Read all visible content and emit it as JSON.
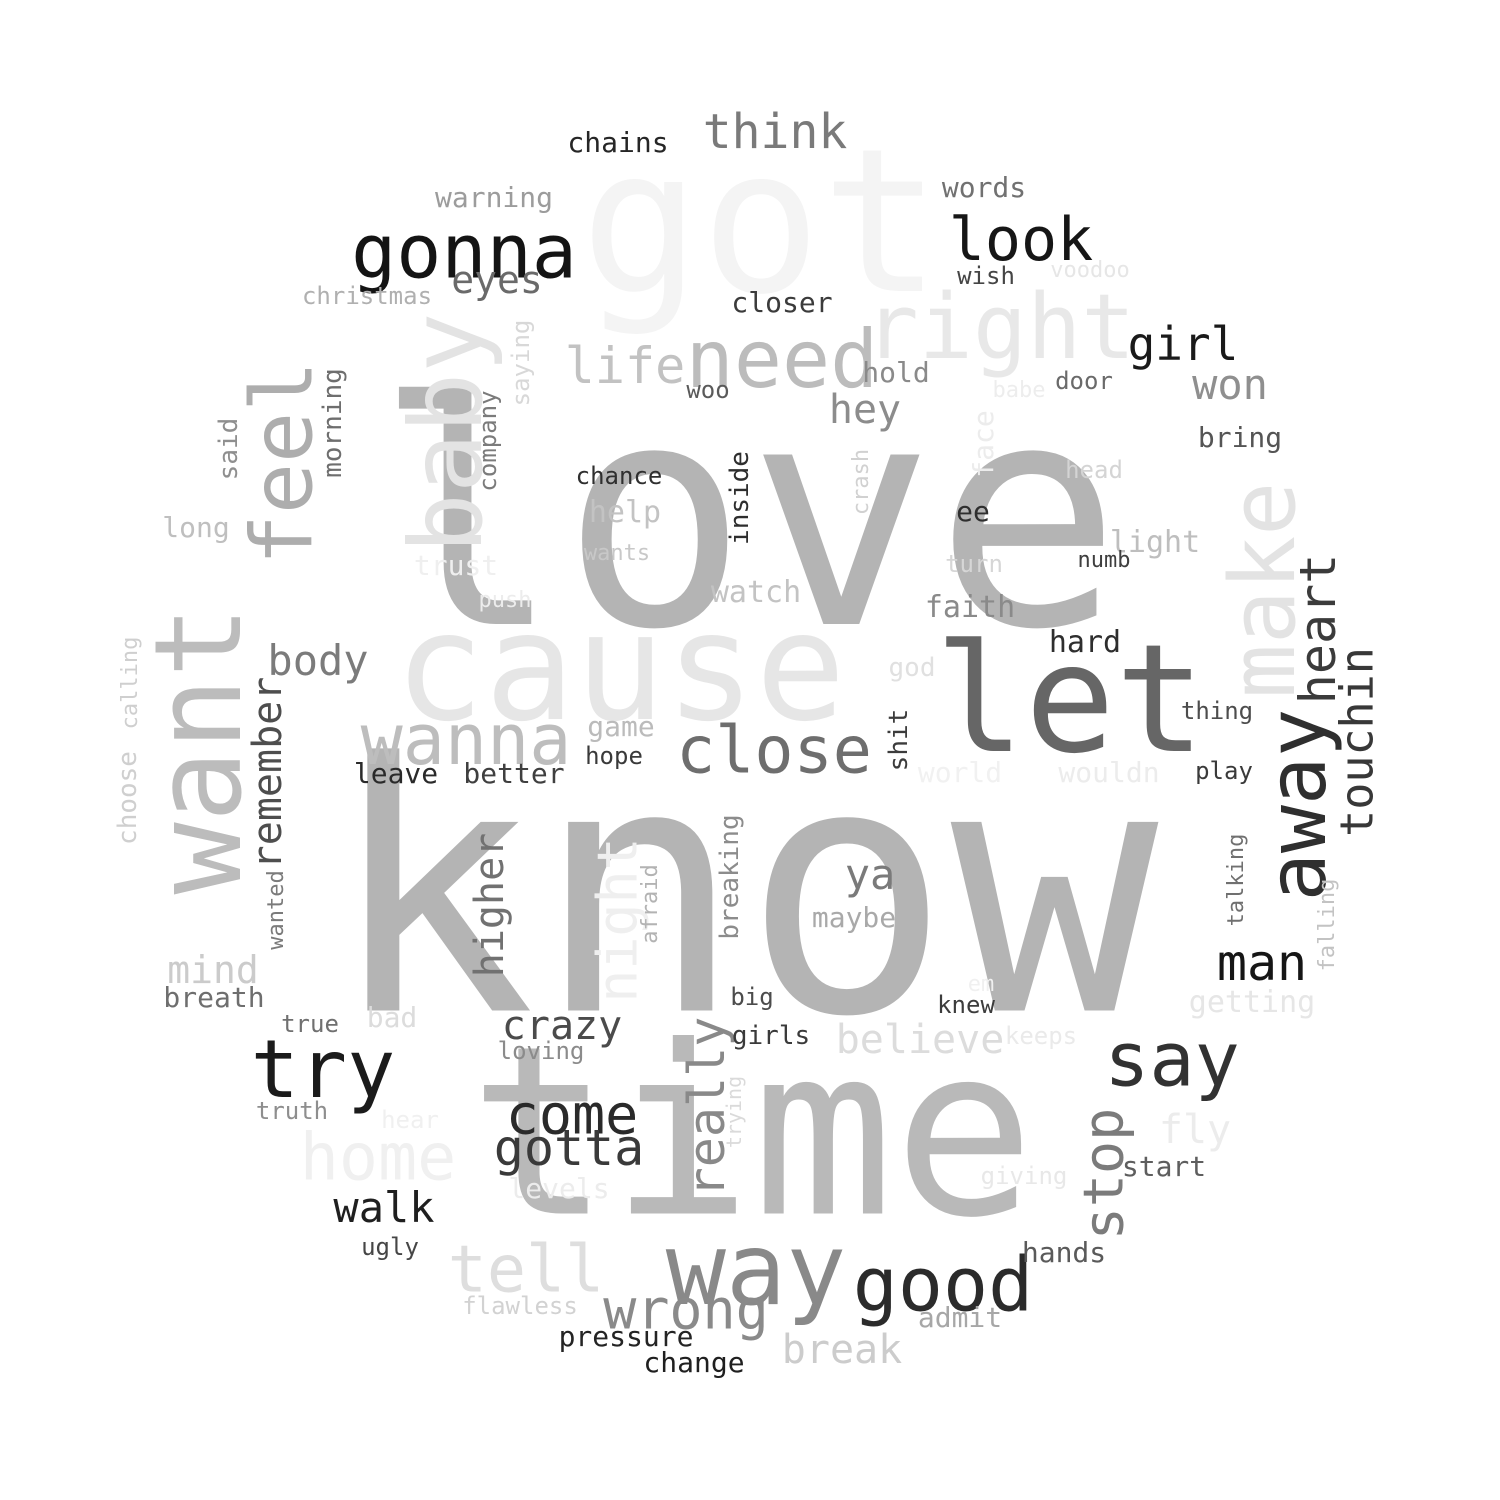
{
  "words": [
    {
      "text": "love",
      "color": "#b4b4b4",
      "vertical": false
    },
    {
      "text": "know",
      "color": "#b4b4b4",
      "vertical": false
    },
    {
      "text": "time",
      "color": "#b9b9b9",
      "vertical": false
    },
    {
      "text": "got",
      "color": "#f4f4f4",
      "vertical": false
    },
    {
      "text": "cause",
      "color": "#e6e6e6",
      "vertical": false
    },
    {
      "text": "want",
      "color": "#bcbcbc",
      "vertical": true
    },
    {
      "text": "let",
      "color": "#666666",
      "vertical": false
    },
    {
      "text": "right",
      "color": "#e8e8e8",
      "vertical": false
    },
    {
      "text": "baby",
      "color": "#e3e3e3",
      "vertical": true
    },
    {
      "text": "feel",
      "color": "#adadad",
      "vertical": true
    },
    {
      "text": "way",
      "color": "#898989",
      "vertical": false
    },
    {
      "text": "make",
      "color": "#e3e3e3",
      "vertical": true
    },
    {
      "text": "away",
      "color": "#2f2f2f",
      "vertical": true
    },
    {
      "text": "need",
      "color": "#bcbcbc",
      "vertical": false
    },
    {
      "text": "gonna",
      "color": "#141414",
      "vertical": false
    },
    {
      "text": "wanna",
      "color": "#bdbdbd",
      "vertical": false
    },
    {
      "text": "try",
      "color": "#1b1b1b",
      "vertical": false
    },
    {
      "text": "say",
      "color": "#323232",
      "vertical": false
    },
    {
      "text": "good",
      "color": "#2b2b2b",
      "vertical": false
    },
    {
      "text": "close",
      "color": "#6e6e6e",
      "vertical": false
    },
    {
      "text": "look",
      "color": "#161616",
      "vertical": false
    },
    {
      "text": "home",
      "color": "#f0f0f0",
      "vertical": false
    },
    {
      "text": "tell",
      "color": "#dedede",
      "vertical": false
    },
    {
      "text": "come",
      "color": "#2a2a2a",
      "vertical": false
    },
    {
      "text": "gotta",
      "color": "#3a3a3a",
      "vertical": false
    },
    {
      "text": "wrong",
      "color": "#8a8a8a",
      "vertical": false
    },
    {
      "text": "stop",
      "color": "#7b7b7b",
      "vertical": true
    },
    {
      "text": "heart",
      "color": "#3b3b3b",
      "vertical": true
    },
    {
      "text": "touchin",
      "color": "#383838",
      "vertical": true
    },
    {
      "text": "man",
      "color": "#161616",
      "vertical": false
    },
    {
      "text": "think",
      "color": "#7a7a7a",
      "vertical": false
    },
    {
      "text": "girl",
      "color": "#1a1a1a",
      "vertical": false
    },
    {
      "text": "really",
      "color": "#898989",
      "vertical": true
    },
    {
      "text": "life",
      "color": "#c2c2c2",
      "vertical": false
    },
    {
      "text": "night",
      "color": "#efefef",
      "vertical": true
    },
    {
      "text": "body",
      "color": "#7b7b7b",
      "vertical": false
    },
    {
      "text": "remember",
      "color": "#4e4e4e",
      "vertical": true
    },
    {
      "text": "higher",
      "color": "#717171",
      "vertical": true
    },
    {
      "text": "eyes",
      "color": "#6a6a6a",
      "vertical": false
    },
    {
      "text": "won",
      "color": "#8f8f8f",
      "vertical": false
    },
    {
      "text": "hey",
      "color": "#8c8c8c",
      "vertical": false
    },
    {
      "text": "ya",
      "color": "#7a7a7a",
      "vertical": false
    },
    {
      "text": "crazy",
      "color": "#4b4b4b",
      "vertical": false
    },
    {
      "text": "walk",
      "color": "#1f1f1f",
      "vertical": false
    },
    {
      "text": "believe",
      "color": "#dcdcdc",
      "vertical": false
    },
    {
      "text": "break",
      "color": "#cccccc",
      "vertical": false
    },
    {
      "text": "fly",
      "color": "#ececec",
      "vertical": false
    },
    {
      "text": "mind",
      "color": "#cbcbcb",
      "vertical": false
    },
    {
      "text": "chains",
      "color": "#262626",
      "vertical": false
    },
    {
      "text": "warning",
      "color": "#9c9c9c",
      "vertical": false
    },
    {
      "text": "words",
      "color": "#717171",
      "vertical": false
    },
    {
      "text": "christmas",
      "color": "#b0b0b0",
      "vertical": false
    },
    {
      "text": "wish",
      "color": "#454545",
      "vertical": false
    },
    {
      "text": "voodoo",
      "color": "#e6e6e6",
      "vertical": false
    },
    {
      "text": "closer",
      "color": "#3b3b3b",
      "vertical": false
    },
    {
      "text": "saying",
      "color": "#d8d8d8",
      "vertical": true
    },
    {
      "text": "morning",
      "color": "#6e6e6e",
      "vertical": true
    },
    {
      "text": "hold",
      "color": "#8a8a8a",
      "vertical": false
    },
    {
      "text": "babe",
      "color": "#ededed",
      "vertical": false
    },
    {
      "text": "door",
      "color": "#6a6a6a",
      "vertical": false
    },
    {
      "text": "woo",
      "color": "#5a5a5a",
      "vertical": false
    },
    {
      "text": "company",
      "color": "#7b7b7b",
      "vertical": true
    },
    {
      "text": "said",
      "color": "#8f8f8f",
      "vertical": true
    },
    {
      "text": "bring",
      "color": "#555555",
      "vertical": false
    },
    {
      "text": "face",
      "color": "#ececec",
      "vertical": true
    },
    {
      "text": "head",
      "color": "#d4d4d4",
      "vertical": false
    },
    {
      "text": "chance",
      "color": "#2f2f2f",
      "vertical": false
    },
    {
      "text": "inside",
      "color": "#2e2e2e",
      "vertical": true
    },
    {
      "text": "crash",
      "color": "#d1d1d1",
      "vertical": true
    },
    {
      "text": "ee",
      "color": "#2f2f2f",
      "vertical": false
    },
    {
      "text": "help",
      "color": "#c3c3c3",
      "vertical": false
    },
    {
      "text": "long",
      "color": "#bfbfbf",
      "vertical": false
    },
    {
      "text": "light",
      "color": "#bebebe",
      "vertical": false
    },
    {
      "text": "wants",
      "color": "#c8c8c8",
      "vertical": false
    },
    {
      "text": "trust",
      "color": "#efefef",
      "vertical": false
    },
    {
      "text": "turn",
      "color": "#d6d6d6",
      "vertical": false
    },
    {
      "text": "numb",
      "color": "#3f3f3f",
      "vertical": false
    },
    {
      "text": "push",
      "color": "#ececec",
      "vertical": false
    },
    {
      "text": "watch",
      "color": "#c3c3c3",
      "vertical": false
    },
    {
      "text": "faith",
      "color": "#8a8a8a",
      "vertical": false
    },
    {
      "text": "hard",
      "color": "#2e2e2e",
      "vertical": false
    },
    {
      "text": "god",
      "color": "#e0e0e0",
      "vertical": false
    },
    {
      "text": "calling",
      "color": "#cfcfcf",
      "vertical": true
    },
    {
      "text": "choose",
      "color": "#cfcfcf",
      "vertical": true
    },
    {
      "text": "game",
      "color": "#bbbbbb",
      "vertical": false
    },
    {
      "text": "thing",
      "color": "#4d4d4d",
      "vertical": false
    },
    {
      "text": "hope",
      "color": "#3a3a3a",
      "vertical": false
    },
    {
      "text": "shit",
      "color": "#3c3c3c",
      "vertical": true
    },
    {
      "text": "world",
      "color": "#f1f1f1",
      "vertical": false
    },
    {
      "text": "wouldn",
      "color": "#ececec",
      "vertical": false
    },
    {
      "text": "play",
      "color": "#3a3a3a",
      "vertical": false
    },
    {
      "text": "leave",
      "color": "#2a2a2a",
      "vertical": false
    },
    {
      "text": "better",
      "color": "#3f3f3f",
      "vertical": false
    },
    {
      "text": "breaking",
      "color": "#8c8c8c",
      "vertical": true
    },
    {
      "text": "talking",
      "color": "#707070",
      "vertical": true
    },
    {
      "text": "afraid",
      "color": "#b3b3b3",
      "vertical": true
    },
    {
      "text": "maybe",
      "color": "#a9a9a9",
      "vertical": false
    },
    {
      "text": "falling",
      "color": "#c3c3c3",
      "vertical": true
    },
    {
      "text": "wanted",
      "color": "#7b7b7b",
      "vertical": true
    },
    {
      "text": "breath",
      "color": "#6e6e6e",
      "vertical": false
    },
    {
      "text": "big",
      "color": "#4c4c4c",
      "vertical": false
    },
    {
      "text": "em",
      "color": "#f0f0f0",
      "vertical": false
    },
    {
      "text": "knew",
      "color": "#3c3c3c",
      "vertical": false
    },
    {
      "text": "getting",
      "color": "#e6e6e6",
      "vertical": false
    },
    {
      "text": "true",
      "color": "#707070",
      "vertical": false
    },
    {
      "text": "bad",
      "color": "#dcdcdc",
      "vertical": false
    },
    {
      "text": "girls",
      "color": "#3a3a3a",
      "vertical": false
    },
    {
      "text": "keeps",
      "color": "#eaeaea",
      "vertical": false
    },
    {
      "text": "loving",
      "color": "#8b8b8b",
      "vertical": false
    },
    {
      "text": "trying",
      "color": "#dadada",
      "vertical": true
    },
    {
      "text": "truth",
      "color": "#8e8e8e",
      "vertical": false
    },
    {
      "text": "hear",
      "color": "#f0f0f0",
      "vertical": false
    },
    {
      "text": "start",
      "color": "#5e5e5e",
      "vertical": false
    },
    {
      "text": "levels",
      "color": "#ececec",
      "vertical": false
    },
    {
      "text": "giving",
      "color": "#e8e8e8",
      "vertical": false
    },
    {
      "text": "ugly",
      "color": "#464646",
      "vertical": false
    },
    {
      "text": "hands",
      "color": "#5a5a5a",
      "vertical": false
    },
    {
      "text": "flawless",
      "color": "#d2d2d2",
      "vertical": false
    },
    {
      "text": "admit",
      "color": "#a7a7a7",
      "vertical": false
    },
    {
      "text": "pressure",
      "color": "#242424",
      "vertical": false
    },
    {
      "text": "change",
      "color": "#1f1f1f",
      "vertical": false
    }
  ]
}
